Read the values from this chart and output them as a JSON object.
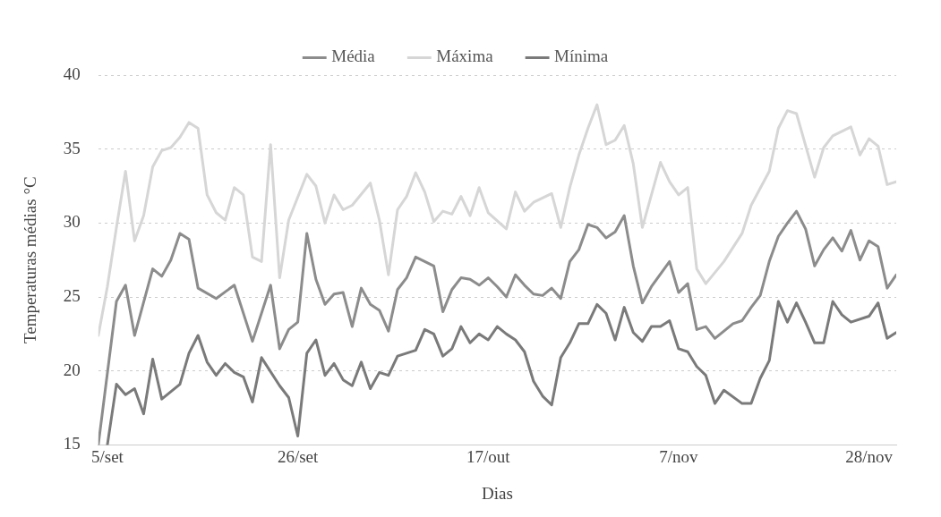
{
  "chart_data": {
    "type": "line",
    "xlabel": "Dias",
    "ylabel": "Temperaturas médias °C",
    "xlim": [
      "--09-04",
      "--12-01"
    ],
    "xticks": [
      {
        "value": "--09-05",
        "label": "5/set"
      },
      {
        "value": "--09-26",
        "label": "26/set"
      },
      {
        "value": "--10-17",
        "label": "17/out"
      },
      {
        "value": "--11-07",
        "label": "7/nov"
      },
      {
        "value": "--11-28",
        "label": "28/nov"
      }
    ],
    "ylim": [
      15,
      40
    ],
    "yticks": [
      15,
      20,
      25,
      30,
      35,
      40
    ],
    "grid": "y",
    "legend": "top",
    "marker": "none",
    "line_style": "solid",
    "series": [
      {
        "name": "Média",
        "color": "#8c8c8c",
        "x": [
          "--09-04",
          "--09-06",
          "--09-07",
          "--09-08",
          "--09-10",
          "--09-11",
          "--09-12",
          "--09-13",
          "--09-14",
          "--09-15",
          "--09-17",
          "--09-19",
          "--09-21",
          "--09-23",
          "--09-24",
          "--09-25",
          "--09-26",
          "--09-27",
          "--09-28",
          "--09-29",
          "--09-30",
          "--10-01",
          "--10-02",
          "--10-03",
          "--10-04",
          "--10-05",
          "--10-06",
          "--10-07",
          "--10-08",
          "--10-09",
          "--10-11",
          "--10-12",
          "--10-13",
          "--10-14",
          "--10-15",
          "--10-16",
          "--10-17",
          "--10-18",
          "--10-19",
          "--10-20",
          "--10-21",
          "--10-22",
          "--10-23",
          "--10-24",
          "--10-25",
          "--10-26",
          "--10-27",
          "--10-28",
          "--10-29",
          "--10-30",
          "--10-31",
          "--11-01",
          "--11-02",
          "--11-03",
          "--11-04",
          "--11-06",
          "--11-07",
          "--11-08",
          "--11-09",
          "--11-10",
          "--11-11",
          "--11-13",
          "--11-14",
          "--11-15",
          "--11-16",
          "--11-17",
          "--11-18",
          "--11-19",
          "--11-20",
          "--11-21",
          "--11-22",
          "--11-23",
          "--11-24",
          "--11-25",
          "--11-26",
          "--11-27",
          "--11-28",
          "--11-29",
          "--11-30",
          "--12-01"
        ],
        "values": [
          15.0,
          24.7,
          25.8,
          22.4,
          26.9,
          26.4,
          27.5,
          29.3,
          28.9,
          25.6,
          24.9,
          25.8,
          22.0,
          25.8,
          21.5,
          22.8,
          23.3,
          29.3,
          26.2,
          24.5,
          25.2,
          25.3,
          23.0,
          25.6,
          24.5,
          24.1,
          22.7,
          25.5,
          26.3,
          27.7,
          27.1,
          24.0,
          25.5,
          26.3,
          26.2,
          25.8,
          26.3,
          25.7,
          25.0,
          26.5,
          25.8,
          25.2,
          25.1,
          25.6,
          24.9,
          27.4,
          28.2,
          29.9,
          29.7,
          29.0,
          29.4,
          30.5,
          27.1,
          24.6,
          25.7,
          27.4,
          25.3,
          25.9,
          22.8,
          23.0,
          22.2,
          23.2,
          23.4,
          24.3,
          25.1,
          27.4,
          29.1,
          30.0,
          30.8,
          29.6,
          27.1,
          28.2,
          29.0,
          28.1,
          29.5,
          27.5,
          28.8,
          28.4,
          25.6,
          26.5
        ]
      },
      {
        "name": "Máxima",
        "color": "#d6d6d6",
        "x": [
          "--09-04",
          "--09-05",
          "--09-06",
          "--09-07",
          "--09-08",
          "--09-09",
          "--09-10",
          "--09-11",
          "--09-12",
          "--09-13",
          "--09-14",
          "--09-15",
          "--09-16",
          "--09-17",
          "--09-18",
          "--09-19",
          "--09-20",
          "--09-21",
          "--09-22",
          "--09-23",
          "--09-24",
          "--09-25",
          "--09-27",
          "--09-28",
          "--09-29",
          "--09-30",
          "--10-01",
          "--10-02",
          "--10-04",
          "--10-05",
          "--10-06",
          "--10-07",
          "--10-08",
          "--10-09",
          "--10-10",
          "--10-11",
          "--10-12",
          "--10-13",
          "--10-14",
          "--10-15",
          "--10-16",
          "--10-17",
          "--10-19",
          "--10-20",
          "--10-21",
          "--10-22",
          "--10-24",
          "--10-25",
          "--10-26",
          "--10-27",
          "--10-28",
          "--10-29",
          "--10-30",
          "--10-31",
          "--11-01",
          "--11-02",
          "--11-03",
          "--11-04",
          "--11-05",
          "--11-06",
          "--11-07",
          "--11-08",
          "--11-09",
          "--11-10",
          "--11-12",
          "--11-14",
          "--11-15",
          "--11-17",
          "--11-18",
          "--11-19",
          "--11-20",
          "--11-22",
          "--11-23",
          "--11-24",
          "--11-26",
          "--11-27",
          "--11-28",
          "--11-29",
          "--11-30",
          "--12-01"
        ],
        "values": [
          22.4,
          25.7,
          29.7,
          33.5,
          28.8,
          30.5,
          33.8,
          34.9,
          35.1,
          35.8,
          36.8,
          36.4,
          31.9,
          30.7,
          30.2,
          32.4,
          31.9,
          27.7,
          27.4,
          35.3,
          26.3,
          30.2,
          33.3,
          32.5,
          30.0,
          31.9,
          30.9,
          31.2,
          32.7,
          30.2,
          26.5,
          30.9,
          31.8,
          33.4,
          32.1,
          30.1,
          30.8,
          30.6,
          31.8,
          30.5,
          32.4,
          30.7,
          29.6,
          32.1,
          30.8,
          31.4,
          32.0,
          29.7,
          32.4,
          34.6,
          36.4,
          38.0,
          35.3,
          35.6,
          36.6,
          34.0,
          29.7,
          31.9,
          34.1,
          32.8,
          31.9,
          32.4,
          26.9,
          25.9,
          27.4,
          29.3,
          31.2,
          33.5,
          36.4,
          37.6,
          37.4,
          33.1,
          35.1,
          35.9,
          36.5,
          34.6,
          35.7,
          35.2,
          32.6,
          32.8
        ]
      },
      {
        "name": "Mínima",
        "color": "#7a7a7a",
        "x": [
          "--09-05",
          "--09-06",
          "--09-07",
          "--09-08",
          "--09-09",
          "--09-10",
          "--09-11",
          "--09-13",
          "--09-14",
          "--09-15",
          "--09-16",
          "--09-17",
          "--09-18",
          "--09-19",
          "--09-20",
          "--09-21",
          "--09-22",
          "--09-24",
          "--09-25",
          "--09-26",
          "--09-27",
          "--09-28",
          "--09-29",
          "--09-30",
          "--10-01",
          "--10-02",
          "--10-03",
          "--10-04",
          "--10-05",
          "--10-06",
          "--10-07",
          "--10-09",
          "--10-10",
          "--10-11",
          "--10-12",
          "--10-13",
          "--10-14",
          "--10-15",
          "--10-16",
          "--10-17",
          "--10-18",
          "--10-19",
          "--10-20",
          "--10-21",
          "--10-22",
          "--10-23",
          "--10-24",
          "--10-25",
          "--10-26",
          "--10-27",
          "--10-28",
          "--10-29",
          "--10-30",
          "--10-31",
          "--11-01",
          "--11-02",
          "--11-03",
          "--11-04",
          "--11-05",
          "--11-06",
          "--11-07",
          "--11-08",
          "--11-09",
          "--11-10",
          "--11-11",
          "--11-12",
          "--11-14",
          "--11-15",
          "--11-16",
          "--11-17",
          "--11-18",
          "--11-19",
          "--11-20",
          "--11-21",
          "--11-22",
          "--11-23",
          "--11-24",
          "--11-25",
          "--11-26",
          "--11-28",
          "--11-29",
          "--11-30",
          "--12-01"
        ],
        "values": [
          15.0,
          19.1,
          18.4,
          18.8,
          17.1,
          20.8,
          18.1,
          19.1,
          21.2,
          22.4,
          20.6,
          19.7,
          20.5,
          19.9,
          19.6,
          17.9,
          20.9,
          19.0,
          18.2,
          15.6,
          21.2,
          22.1,
          19.7,
          20.5,
          19.4,
          19.0,
          20.6,
          18.8,
          19.9,
          19.7,
          21.0,
          21.4,
          22.8,
          22.5,
          21.0,
          21.5,
          23.0,
          21.9,
          22.5,
          22.1,
          23.0,
          22.5,
          22.1,
          21.3,
          19.3,
          18.3,
          17.7,
          20.9,
          21.9,
          23.2,
          23.2,
          24.5,
          23.9,
          22.1,
          24.3,
          22.6,
          22.0,
          23.0,
          23.0,
          23.4,
          21.5,
          21.3,
          20.3,
          19.7,
          17.8,
          18.7,
          17.8,
          17.8,
          19.5,
          20.7,
          24.7,
          23.3,
          24.6,
          23.3,
          21.9,
          21.9,
          24.7,
          23.8,
          23.3,
          23.7,
          24.6,
          22.2,
          22.6
        ]
      }
    ]
  }
}
